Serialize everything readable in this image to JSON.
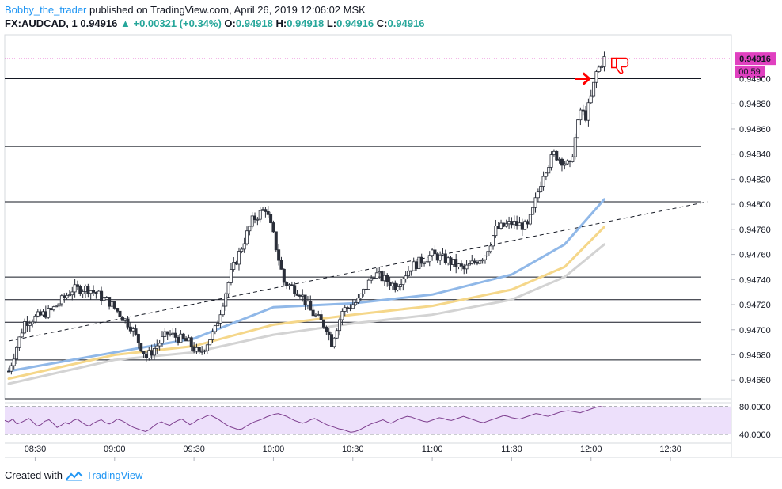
{
  "header": {
    "author": "Bobby_the_trader",
    "published_text": "published on TradingView.com, April 26, 2019 12:06:02 MSK"
  },
  "quote": {
    "symbol": "FX:AUDCAD, 1",
    "last": "0.94916",
    "change": "+0.00321 (+0.34%)",
    "o_label": "O:",
    "o": "0.94918",
    "h_label": "H:",
    "h": "0.94918",
    "l_label": "L:",
    "l": "0.94916",
    "c_label": "C:",
    "c": "0.94916"
  },
  "footer": {
    "created_with": "Created with",
    "brand": "TradingView"
  },
  "colors": {
    "candle": "#2a2e39",
    "ma_fast": "#90b8e8",
    "ma_mid": "#f5d78a",
    "ma_slow": "#d3d3d3",
    "rsi_line": "#7e3f8f",
    "rsi_band": "#ede0fb",
    "price_tag": "#e040c0",
    "annotation": "#ff0000"
  },
  "chart_data": {
    "type": "candlestick",
    "symbol": "FX:AUDCAD",
    "interval": "1",
    "price_axis": {
      "ticks": [
        "0.94880",
        "0.94860",
        "0.94840",
        "0.94820",
        "0.94800",
        "0.94780",
        "0.94760",
        "0.94740",
        "0.94720",
        "0.94700",
        "0.94680",
        "0.94660"
      ],
      "last_price_label": "0.94916",
      "countdown_label": "00:59",
      "partially_hidden_label": "0.94900"
    },
    "ylim": [
      0.94645,
      0.94935
    ],
    "time_axis": {
      "ticks": [
        "08:30",
        "09:00",
        "09:30",
        "10:00",
        "10:30",
        "11:00",
        "11:30",
        "12:00",
        "12:30"
      ]
    },
    "horizontal_lines": [
      0.949,
      0.94846,
      0.94802,
      0.94742,
      0.94724,
      0.94706,
      0.94676,
      0.94645
    ],
    "trendline": {
      "from": [
        "08:20",
        0.94691
      ],
      "to": [
        "12:44",
        0.94802
      ]
    },
    "close_path": [
      [
        "08:20",
        0.94667
      ],
      [
        "08:26",
        0.94706
      ],
      [
        "08:36",
        0.94715
      ],
      [
        "08:44",
        0.94732
      ],
      [
        "08:50",
        0.94733
      ],
      [
        "08:58",
        0.94722
      ],
      [
        "09:06",
        0.94703
      ],
      [
        "09:12",
        0.94678
      ],
      [
        "09:20",
        0.94697
      ],
      [
        "09:28",
        0.9469
      ],
      [
        "09:32",
        0.9468
      ],
      [
        "09:38",
        0.947
      ],
      [
        "09:44",
        0.94745
      ],
      [
        "09:52",
        0.94787
      ],
      [
        "09:57",
        0.94797
      ],
      [
        "10:00",
        0.94775
      ],
      [
        "10:04",
        0.94738
      ],
      [
        "10:10",
        0.9473
      ],
      [
        "10:14",
        0.94715
      ],
      [
        "10:20",
        0.94702
      ],
      [
        "10:22",
        0.9469
      ],
      [
        "10:26",
        0.94715
      ],
      [
        "10:32",
        0.94723
      ],
      [
        "10:38",
        0.94745
      ],
      [
        "10:46",
        0.94735
      ],
      [
        "10:52",
        0.9475
      ],
      [
        "11:00",
        0.9476
      ],
      [
        "11:06",
        0.94755
      ],
      [
        "11:12",
        0.94748
      ],
      [
        "11:20",
        0.9476
      ],
      [
        "11:24",
        0.9478
      ],
      [
        "11:30",
        0.94785
      ],
      [
        "11:36",
        0.94782
      ],
      [
        "11:38",
        0.94795
      ],
      [
        "11:42",
        0.94825
      ],
      [
        "11:46",
        0.9484
      ],
      [
        "11:52",
        0.9483
      ],
      [
        "11:56",
        0.94875
      ],
      [
        "11:58",
        0.9487
      ],
      [
        "12:00",
        0.94885
      ],
      [
        "12:02",
        0.94905
      ],
      [
        "12:05",
        0.94916
      ]
    ],
    "moving_averages": [
      {
        "points": [
          [
            "08:20",
            0.94667
          ],
          [
            "09:00",
            0.94682
          ],
          [
            "09:30",
            0.94693
          ],
          [
            "10:00",
            0.94718
          ],
          [
            "10:30",
            0.94721
          ],
          [
            "11:00",
            0.94728
          ],
          [
            "11:30",
            0.94744
          ],
          [
            "11:50",
            0.94768
          ],
          [
            "12:05",
            0.94804
          ]
        ]
      },
      {
        "points": [
          [
            "08:20",
            0.94661
          ],
          [
            "09:00",
            0.9468
          ],
          [
            "09:30",
            0.94687
          ],
          [
            "10:00",
            0.94704
          ],
          [
            "10:30",
            0.94712
          ],
          [
            "11:00",
            0.94719
          ],
          [
            "11:30",
            0.94732
          ],
          [
            "11:50",
            0.9475
          ],
          [
            "12:05",
            0.94782
          ]
        ]
      },
      {
        "points": [
          [
            "08:20",
            0.94657
          ],
          [
            "09:00",
            0.94676
          ],
          [
            "09:30",
            0.94682
          ],
          [
            "10:00",
            0.94696
          ],
          [
            "10:30",
            0.94705
          ],
          [
            "11:00",
            0.94712
          ],
          [
            "11:30",
            0.94724
          ],
          [
            "11:50",
            0.94742
          ],
          [
            "12:05",
            0.94768
          ]
        ]
      }
    ],
    "rsi": {
      "ticks": [
        "80.0000",
        "40.0000"
      ],
      "ylim": [
        31,
        82
      ],
      "bands": [
        80,
        40
      ],
      "values": [
        60,
        58,
        62,
        55,
        57,
        60,
        63,
        58,
        52,
        54,
        59,
        61,
        56,
        50,
        53,
        57,
        55,
        60,
        62,
        58,
        54,
        52,
        56,
        59,
        61,
        57,
        55,
        58,
        62,
        60,
        57,
        53,
        50,
        48,
        46,
        44,
        47,
        52,
        56,
        58,
        55,
        53,
        57,
        60,
        62,
        58,
        54,
        57,
        61,
        63,
        66,
        68,
        65,
        62,
        58,
        54,
        51,
        49,
        47,
        48,
        52,
        55,
        58,
        60,
        62,
        65,
        67,
        69,
        70,
        68,
        66,
        63,
        60,
        58,
        56,
        58,
        61,
        63,
        60,
        57,
        54,
        52,
        50,
        48,
        47,
        45,
        43,
        44,
        46,
        49,
        52,
        55,
        57,
        59,
        61,
        58,
        56,
        59,
        62,
        64,
        66,
        65,
        63,
        61,
        59,
        58,
        60,
        62,
        64,
        63,
        61,
        60,
        62,
        64,
        66,
        64,
        62,
        60,
        58,
        57,
        59,
        61,
        63,
        65,
        67,
        66,
        64,
        63,
        62,
        64,
        66,
        68,
        70,
        69,
        67,
        66,
        68,
        70,
        72,
        73,
        74,
        73,
        72,
        71,
        73,
        75,
        77,
        79,
        80,
        79
      ]
    }
  }
}
